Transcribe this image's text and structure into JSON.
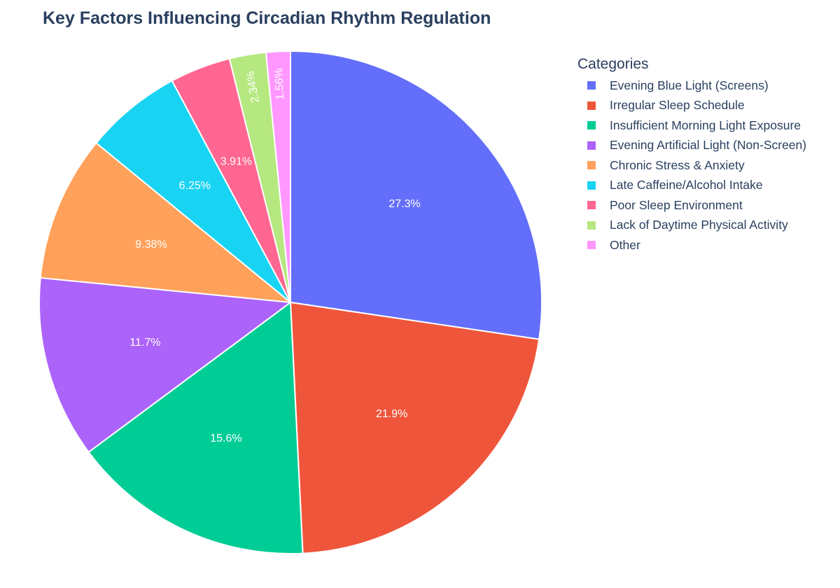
{
  "chart_data": {
    "type": "pie",
    "title": "Key Factors Influencing Circadian Rhythm Regulation",
    "legend_title": "Categories",
    "legend_position": "right",
    "categories": [
      "Evening Blue Light (Screens)",
      "Irregular Sleep Schedule",
      "Insufficient Morning Light Exposure",
      "Evening Artificial Light (Non-Screen)",
      "Chronic Stress & Anxiety",
      "Late Caffeine/Alcohol Intake",
      "Poor Sleep Environment",
      "Lack of Daytime Physical Activity",
      "Other"
    ],
    "values": [
      35,
      28,
      20,
      15,
      12,
      8,
      5,
      3,
      2
    ],
    "percent_labels": [
      "27.3%",
      "21.9%",
      "15.6%",
      "11.7%",
      "9.38%",
      "6.25%",
      "3.91%",
      "2.34%",
      "1.56%"
    ],
    "colors": [
      "#636efa",
      "#ef553b",
      "#00cc96",
      "#ab63fa",
      "#ffa15a",
      "#19d3f3",
      "#ff6692",
      "#b6e880",
      "#ff97ff"
    ],
    "direction": "clockwise",
    "start_angle_deg": 90
  },
  "header": {
    "title": "Key Factors Influencing Circadian Rhythm Regulation"
  },
  "legend": {
    "title": "Categories",
    "items": [
      {
        "label": "Evening Blue Light (Screens)",
        "color": "#636efa"
      },
      {
        "label": "Irregular Sleep Schedule",
        "color": "#ef553b"
      },
      {
        "label": "Insufficient Morning Light Exposure",
        "color": "#00cc96"
      },
      {
        "label": "Evening Artificial Light (Non-Screen)",
        "color": "#ab63fa"
      },
      {
        "label": "Chronic Stress & Anxiety",
        "color": "#ffa15a"
      },
      {
        "label": "Late Caffeine/Alcohol Intake",
        "color": "#19d3f3"
      },
      {
        "label": "Poor Sleep Environment",
        "color": "#ff6692"
      },
      {
        "label": "Lack of Daytime Physical Activity",
        "color": "#b6e880"
      },
      {
        "label": "Other",
        "color": "#ff97ff"
      }
    ]
  }
}
